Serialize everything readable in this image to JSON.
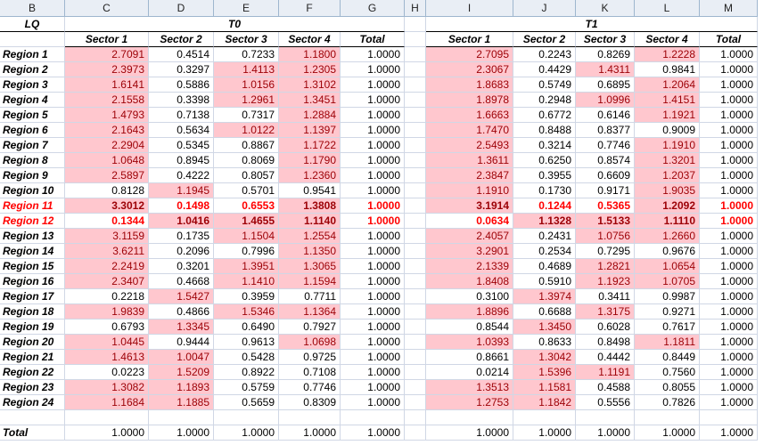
{
  "col_headers": [
    "B",
    "C",
    "D",
    "E",
    "F",
    "G",
    "H",
    "I",
    "J",
    "K",
    "L",
    "M"
  ],
  "corner_label": "LQ",
  "group_labels": {
    "t0": "T0",
    "t1": "T1"
  },
  "sub_headers": [
    "Sector 1",
    "Sector 2",
    "Sector 3",
    "Sector 4",
    "Total"
  ],
  "rows": [
    {
      "label": "Region 1",
      "t0": [
        "2.7091",
        "0.4514",
        "0.7233",
        "1.1800",
        "1.0000"
      ],
      "t1": [
        "2.7095",
        "0.2243",
        "0.8269",
        "1.2228",
        "1.0000"
      ]
    },
    {
      "label": "Region 2",
      "t0": [
        "2.3973",
        "0.3297",
        "1.4113",
        "1.2305",
        "1.0000"
      ],
      "t1": [
        "2.3067",
        "0.4429",
        "1.4311",
        "0.9841",
        "1.0000"
      ]
    },
    {
      "label": "Region 3",
      "t0": [
        "1.6141",
        "0.5886",
        "1.0156",
        "1.3102",
        "1.0000"
      ],
      "t1": [
        "1.8683",
        "0.5749",
        "0.6895",
        "1.2064",
        "1.0000"
      ]
    },
    {
      "label": "Region 4",
      "t0": [
        "2.1558",
        "0.3398",
        "1.2961",
        "1.3451",
        "1.0000"
      ],
      "t1": [
        "1.8978",
        "0.2948",
        "1.0996",
        "1.4151",
        "1.0000"
      ]
    },
    {
      "label": "Region 5",
      "t0": [
        "1.4793",
        "0.7138",
        "0.7317",
        "1.2884",
        "1.0000"
      ],
      "t1": [
        "1.6663",
        "0.6772",
        "0.6146",
        "1.1921",
        "1.0000"
      ]
    },
    {
      "label": "Region 6",
      "t0": [
        "2.1643",
        "0.5634",
        "1.0122",
        "1.1397",
        "1.0000"
      ],
      "t1": [
        "1.7470",
        "0.8488",
        "0.8377",
        "0.9009",
        "1.0000"
      ]
    },
    {
      "label": "Region 7",
      "t0": [
        "2.2904",
        "0.5345",
        "0.8867",
        "1.1722",
        "1.0000"
      ],
      "t1": [
        "2.5493",
        "0.3214",
        "0.7746",
        "1.1910",
        "1.0000"
      ]
    },
    {
      "label": "Region 8",
      "t0": [
        "1.0648",
        "0.8945",
        "0.8069",
        "1.1790",
        "1.0000"
      ],
      "t1": [
        "1.3611",
        "0.6250",
        "0.8574",
        "1.3201",
        "1.0000"
      ]
    },
    {
      "label": "Region 9",
      "t0": [
        "2.5897",
        "0.4222",
        "0.8057",
        "1.2360",
        "1.0000"
      ],
      "t1": [
        "2.3847",
        "0.3955",
        "0.6609",
        "1.2037",
        "1.0000"
      ]
    },
    {
      "label": "Region 10",
      "t0": [
        "0.8128",
        "1.1945",
        "0.5701",
        "0.9541",
        "1.0000"
      ],
      "t1": [
        "1.1910",
        "0.1730",
        "0.9171",
        "1.9035",
        "1.0000"
      ]
    },
    {
      "label": "Region 11",
      "t0": [
        "3.3012",
        "0.1498",
        "0.6553",
        "1.3808",
        "1.0000"
      ],
      "t1": [
        "3.1914",
        "0.1244",
        "0.5365",
        "1.2092",
        "1.0000"
      ]
    },
    {
      "label": "Region 12",
      "t0": [
        "0.1344",
        "1.0416",
        "1.4655",
        "1.1140",
        "1.0000"
      ],
      "t1": [
        "0.0634",
        "1.1328",
        "1.5133",
        "1.1110",
        "1.0000"
      ]
    },
    {
      "label": "Region 13",
      "t0": [
        "3.1159",
        "0.1735",
        "1.1504",
        "1.2554",
        "1.0000"
      ],
      "t1": [
        "2.4057",
        "0.2431",
        "1.0756",
        "1.2660",
        "1.0000"
      ]
    },
    {
      "label": "Region 14",
      "t0": [
        "3.6211",
        "0.2096",
        "0.7996",
        "1.1350",
        "1.0000"
      ],
      "t1": [
        "3.2901",
        "0.2534",
        "0.7295",
        "0.9676",
        "1.0000"
      ]
    },
    {
      "label": "Region 15",
      "t0": [
        "2.2419",
        "0.3201",
        "1.3951",
        "1.3065",
        "1.0000"
      ],
      "t1": [
        "2.1339",
        "0.4689",
        "1.2821",
        "1.0654",
        "1.0000"
      ]
    },
    {
      "label": "Region 16",
      "t0": [
        "2.3407",
        "0.4668",
        "1.1410",
        "1.1594",
        "1.0000"
      ],
      "t1": [
        "1.8408",
        "0.5910",
        "1.1923",
        "1.0705",
        "1.0000"
      ]
    },
    {
      "label": "Region 17",
      "t0": [
        "0.2218",
        "1.5427",
        "0.3959",
        "0.7711",
        "1.0000"
      ],
      "t1": [
        "0.3100",
        "1.3974",
        "0.3411",
        "0.9987",
        "1.0000"
      ]
    },
    {
      "label": "Region 18",
      "t0": [
        "1.9839",
        "0.4866",
        "1.5346",
        "1.1364",
        "1.0000"
      ],
      "t1": [
        "1.8896",
        "0.6688",
        "1.3175",
        "0.9271",
        "1.0000"
      ]
    },
    {
      "label": "Region 19",
      "t0": [
        "0.6793",
        "1.3345",
        "0.6490",
        "0.7927",
        "1.0000"
      ],
      "t1": [
        "0.8544",
        "1.3450",
        "0.6028",
        "0.7617",
        "1.0000"
      ]
    },
    {
      "label": "Region 20",
      "t0": [
        "1.0445",
        "0.9444",
        "0.9613",
        "1.0698",
        "1.0000"
      ],
      "t1": [
        "1.0393",
        "0.8633",
        "0.8498",
        "1.1811",
        "1.0000"
      ]
    },
    {
      "label": "Region 21",
      "t0": [
        "1.4613",
        "1.0047",
        "0.5428",
        "0.9725",
        "1.0000"
      ],
      "t1": [
        "0.8661",
        "1.3042",
        "0.4442",
        "0.8449",
        "1.0000"
      ]
    },
    {
      "label": "Region 22",
      "t0": [
        "0.0223",
        "1.5209",
        "0.8922",
        "0.7108",
        "1.0000"
      ],
      "t1": [
        "0.0214",
        "1.5396",
        "1.1191",
        "0.7560",
        "1.0000"
      ]
    },
    {
      "label": "Region 23",
      "t0": [
        "1.3082",
        "1.1893",
        "0.5759",
        "0.7746",
        "1.0000"
      ],
      "t1": [
        "1.3513",
        "1.1581",
        "0.4588",
        "0.8055",
        "1.0000"
      ]
    },
    {
      "label": "Region 24",
      "t0": [
        "1.1684",
        "1.1885",
        "0.5659",
        "0.8309",
        "1.0000"
      ],
      "t1": [
        "1.2753",
        "1.1842",
        "0.5556",
        "0.7826",
        "1.0000"
      ]
    }
  ],
  "highlighted_rows": [
    "Region 11",
    "Region 12"
  ],
  "highlight_threshold": 1.0,
  "total_row": {
    "label": "Total",
    "t0": [
      "1.0000",
      "1.0000",
      "1.0000",
      "1.0000",
      "1.0000"
    ],
    "t1": [
      "1.0000",
      "1.0000",
      "1.0000",
      "1.0000",
      "1.0000"
    ]
  },
  "colors": {
    "highlight_fill": "#ffc7ce",
    "highlight_text": "#9c0006",
    "row_emphasis_text": "#ff0000",
    "header_bg": "#e9eef5",
    "grid": "#d0d7e5"
  }
}
